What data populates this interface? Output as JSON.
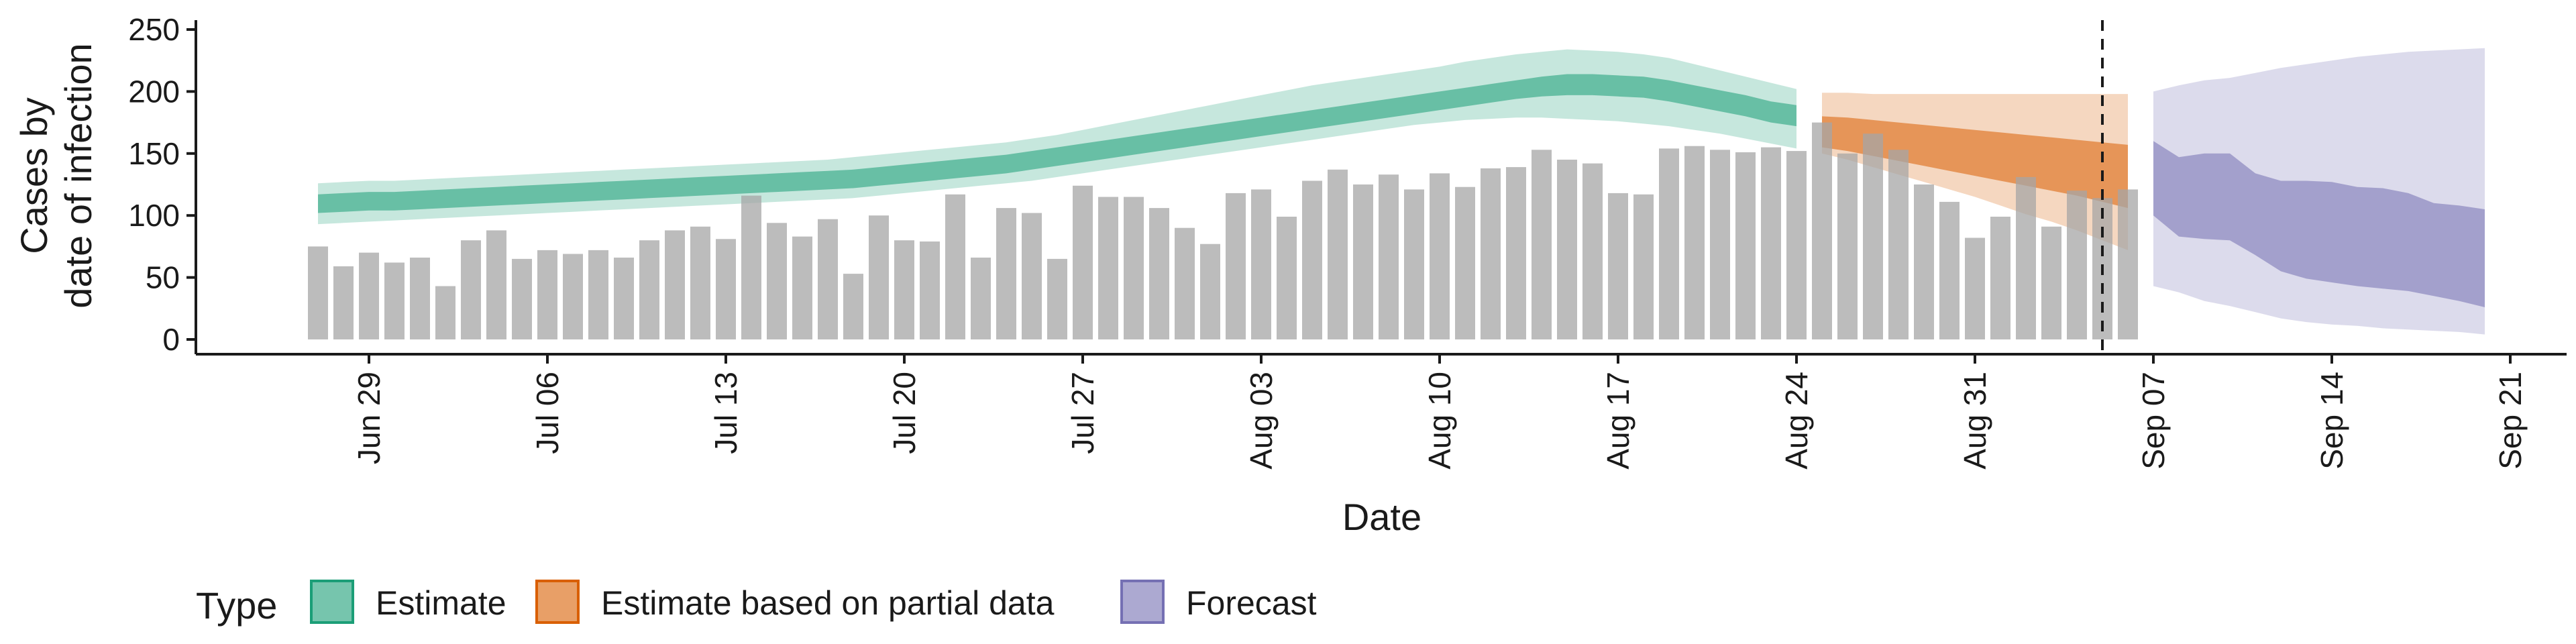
{
  "chart_data": {
    "type": "bar",
    "xlabel": "Date",
    "ylabel_lines": [
      "Cases by",
      "date of infection"
    ],
    "ylim": [
      0,
      250
    ],
    "y_ticks": [
      0,
      50,
      100,
      150,
      200,
      250
    ],
    "x_ticks": [
      {
        "date": "2020-06-29",
        "label": "Jun 29"
      },
      {
        "date": "2020-07-06",
        "label": "Jul 06"
      },
      {
        "date": "2020-07-13",
        "label": "Jul 13"
      },
      {
        "date": "2020-07-20",
        "label": "Jul 20"
      },
      {
        "date": "2020-07-27",
        "label": "Jul 27"
      },
      {
        "date": "2020-08-03",
        "label": "Aug 03"
      },
      {
        "date": "2020-08-10",
        "label": "Aug 10"
      },
      {
        "date": "2020-08-17",
        "label": "Aug 17"
      },
      {
        "date": "2020-08-24",
        "label": "Aug 24"
      },
      {
        "date": "2020-08-31",
        "label": "Aug 31"
      },
      {
        "date": "2020-09-07",
        "label": "Sep 07"
      },
      {
        "date": "2020-09-14",
        "label": "Sep 14"
      },
      {
        "date": "2020-09-21",
        "label": "Sep 21"
      }
    ],
    "bars": {
      "start_date": "2020-06-27",
      "values": [
        75,
        59,
        70,
        62,
        66,
        43,
        80,
        88,
        65,
        72,
        69,
        72,
        66,
        80,
        88,
        91,
        81,
        116,
        94,
        83,
        97,
        53,
        100,
        80,
        79,
        117,
        66,
        106,
        102,
        65,
        124,
        115,
        115,
        106,
        90,
        77,
        118,
        121,
        99,
        128,
        137,
        125,
        133,
        121,
        134,
        123,
        138,
        139,
        153,
        145,
        142,
        118,
        117,
        154,
        156,
        153,
        151,
        155,
        152,
        175,
        150,
        166,
        153,
        125,
        111,
        82,
        99,
        131,
        91,
        120,
        114,
        121
      ]
    },
    "vline_date": "2020-09-05",
    "legend": {
      "title": "Type",
      "items": [
        {
          "label": "Estimate",
          "color": "#1b9e77"
        },
        {
          "label": "Estimate based on partial data",
          "color": "#d95f02"
        },
        {
          "label": "Forecast",
          "color": "#7570b3"
        }
      ]
    },
    "series": [
      {
        "label": "Estimate",
        "color": "#1b9e77",
        "start_date": "2020-06-27",
        "median": [
          109,
          110,
          111,
          111,
          112,
          113,
          114,
          115,
          116,
          117,
          118,
          119,
          120,
          121,
          122,
          123,
          124,
          125,
          126,
          127,
          128,
          129,
          131,
          133,
          135,
          137,
          139,
          141,
          144,
          147,
          150,
          153,
          156,
          159,
          162,
          165,
          168,
          171,
          174,
          177,
          180,
          183,
          186,
          189,
          192,
          195,
          198,
          201,
          203,
          205,
          205,
          204,
          203,
          200,
          196,
          192,
          188,
          183,
          180
        ],
        "lower90": [
          93,
          94,
          95,
          96,
          97,
          98,
          99,
          100,
          101,
          102,
          103,
          104,
          105,
          106,
          107,
          108,
          109,
          110,
          111,
          112,
          113,
          114,
          116,
          118,
          120,
          122,
          124,
          126,
          128,
          131,
          134,
          137,
          140,
          143,
          146,
          149,
          152,
          155,
          158,
          161,
          164,
          167,
          170,
          173,
          175,
          177,
          178,
          179,
          179,
          178,
          177,
          176,
          174,
          172,
          169,
          166,
          162,
          158,
          154
        ],
        "upper90": [
          126,
          127,
          128,
          128,
          129,
          130,
          131,
          132,
          133,
          134,
          135,
          136,
          137,
          138,
          139,
          140,
          141,
          142,
          143,
          144,
          145,
          147,
          149,
          151,
          153,
          155,
          157,
          159,
          162,
          165,
          169,
          173,
          177,
          181,
          185,
          189,
          193,
          197,
          201,
          205,
          208,
          211,
          214,
          217,
          220,
          224,
          227,
          230,
          232,
          234,
          233,
          232,
          230,
          227,
          222,
          217,
          212,
          207,
          202
        ],
        "lower50": [
          102,
          103,
          104,
          104,
          105,
          106,
          107,
          108,
          109,
          110,
          111,
          112,
          113,
          114,
          115,
          116,
          117,
          118,
          119,
          120,
          121,
          122,
          124,
          126,
          128,
          130,
          132,
          134,
          137,
          140,
          143,
          146,
          149,
          152,
          155,
          158,
          161,
          164,
          167,
          170,
          173,
          176,
          179,
          182,
          185,
          188,
          191,
          194,
          196,
          197,
          197,
          196,
          195,
          192,
          188,
          184,
          180,
          175,
          172
        ],
        "upper50": [
          117,
          118,
          119,
          119,
          120,
          121,
          122,
          123,
          124,
          125,
          126,
          127,
          128,
          129,
          130,
          131,
          132,
          133,
          134,
          135,
          136,
          137,
          139,
          141,
          143,
          145,
          147,
          149,
          152,
          155,
          158,
          161,
          164,
          167,
          170,
          173,
          176,
          179,
          182,
          185,
          188,
          191,
          194,
          197,
          200,
          203,
          206,
          209,
          212,
          214,
          214,
          213,
          212,
          209,
          205,
          201,
          197,
          192,
          189
        ]
      },
      {
        "label": "Estimate based on partial data",
        "color": "#d95f02",
        "start_date": "2020-08-25",
        "median": [
          165,
          163,
          160,
          158,
          155,
          152,
          149,
          146,
          143,
          140,
          137,
          133,
          129
        ],
        "lower90": [
          150,
          145,
          139,
          133,
          127,
          121,
          115,
          108,
          101,
          95,
          88,
          80,
          72
        ],
        "upper90": [
          199,
          199,
          198,
          198,
          198,
          198,
          198,
          198,
          198,
          198,
          198,
          198,
          198
        ],
        "lower50": [
          155,
          152,
          148,
          144,
          140,
          136,
          132,
          128,
          124,
          120,
          116,
          111,
          106
        ],
        "upper50": [
          180,
          179,
          177,
          175,
          173,
          171,
          169,
          167,
          165,
          163,
          161,
          159,
          157
        ]
      },
      {
        "label": "Forecast",
        "color": "#7570b3",
        "start_date": "2020-09-07",
        "median": [
          130,
          116,
          116,
          116,
          104,
          95,
          92,
          90,
          88,
          86,
          85,
          82,
          80,
          78
        ],
        "lower90": [
          43,
          38,
          31,
          27,
          22,
          17,
          14,
          12,
          11,
          9,
          8,
          7,
          6,
          4
        ],
        "upper90": [
          200,
          205,
          209,
          211,
          215,
          219,
          222,
          225,
          228,
          230,
          232,
          233,
          234,
          235
        ],
        "lower50": [
          100,
          83,
          81,
          80,
          68,
          55,
          49,
          46,
          43,
          41,
          39,
          35,
          31,
          26
        ],
        "upper50": [
          160,
          147,
          150,
          150,
          134,
          128,
          128,
          127,
          123,
          122,
          118,
          110,
          108,
          105
        ]
      }
    ]
  }
}
